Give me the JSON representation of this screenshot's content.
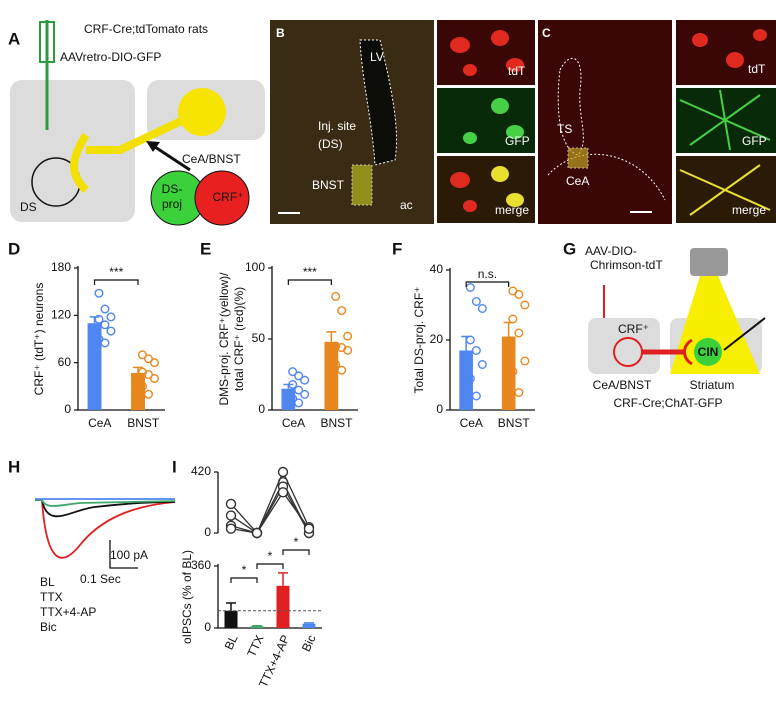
{
  "panel_letters": [
    "A",
    "B",
    "C",
    "D",
    "E",
    "F",
    "G",
    "H",
    "I"
  ],
  "panel_a": {
    "title": "CRF-Cre;tdTomato rats",
    "virus": "AAVretro-DIO-GFP",
    "region": "CeA/BNST",
    "ds_proj": [
      "DS-",
      "proj"
    ],
    "crf": "CRF⁺",
    "ds": "DS"
  },
  "panel_b": {
    "lv": "LV",
    "inj": [
      "Inj. site",
      "(DS)"
    ],
    "bnst": "BNST",
    "ac": "ac",
    "tdt": "tdT",
    "gfp": "GFP",
    "merge": "merge"
  },
  "panel_c": {
    "ts": "TS",
    "cea": "CeA",
    "tdt": "tdT",
    "gfp": "GFP",
    "merge": "merge"
  },
  "panel_g": {
    "virus": [
      "AAV-DIO-",
      "Chrimson-tdT"
    ],
    "crf": "CRF⁺",
    "cin": "CIN",
    "region": "CeA/BNST",
    "striatum": "Striatum",
    "rats": "CRF-Cre;ChAT-GFP"
  },
  "panel_h": {
    "scale_y": "100 pA",
    "scale_x": "0.1 Sec",
    "legend": [
      {
        "name": "BL",
        "color": "#111111"
      },
      {
        "name": "TTX",
        "color": "#3fa86b"
      },
      {
        "name": "TTX+4-AP",
        "color": "#e02020"
      },
      {
        "name": "Bic",
        "color": "#4f86f0"
      }
    ]
  },
  "chart_data": [
    {
      "type": "bar",
      "ylabel": [
        "CRF⁺ (tdT⁺) neurons"
      ],
      "categories": [
        "CeA",
        "BNST"
      ],
      "values": [
        110,
        47
      ],
      "errors": [
        8,
        7
      ],
      "colors": [
        "#4f86f0",
        "#e8871e"
      ],
      "points": [
        [
          148,
          128,
          118,
          115,
          108,
          100,
          90,
          85
        ],
        [
          70,
          65,
          60,
          48,
          45,
          40,
          30,
          20
        ]
      ],
      "significance": [
        "***"
      ],
      "ylim": [
        0,
        180
      ],
      "yticks": [
        0,
        60,
        120,
        180
      ]
    },
    {
      "type": "bar",
      "ylabel": [
        "DMS-proj. CRF⁺(yellow)/",
        "total CRF⁺ (red)(%)"
      ],
      "categories": [
        "CeA",
        "BNST"
      ],
      "values": [
        15,
        48
      ],
      "errors": [
        3,
        7
      ],
      "colors": [
        "#4f86f0",
        "#e8871e"
      ],
      "points": [
        [
          27,
          24,
          21,
          18,
          14,
          11,
          8,
          5
        ],
        [
          80,
          70,
          52,
          45,
          44,
          42,
          32,
          28
        ]
      ],
      "significance": [
        "***"
      ],
      "ylim": [
        0,
        100
      ],
      "yticks": [
        0,
        50,
        100
      ]
    },
    {
      "type": "bar",
      "ylabel": [
        "Total DS-proj. CRF⁺"
      ],
      "categories": [
        "CeA",
        "BNST"
      ],
      "values": [
        17,
        21
      ],
      "errors": [
        4,
        4
      ],
      "colors": [
        "#4f86f0",
        "#e8871e"
      ],
      "points": [
        [
          35,
          31,
          29,
          20,
          17,
          13,
          9,
          4
        ],
        [
          34,
          33,
          30,
          26,
          22,
          14,
          11,
          5
        ]
      ],
      "significance": [
        "n.s."
      ],
      "ylim": [
        0,
        40
      ],
      "yticks": [
        0,
        20,
        40
      ]
    },
    {
      "type": "line",
      "ylim": [
        0,
        420
      ],
      "yticks": [
        0,
        420
      ],
      "color": "#333333",
      "series": [
        {
          "values": [
            200,
            0,
            350,
            0
          ]
        },
        {
          "values": [
            120,
            0,
            420,
            40
          ]
        },
        {
          "values": [
            50,
            0,
            320,
            0
          ]
        },
        {
          "values": [
            30,
            0,
            280,
            30
          ]
        }
      ]
    },
    {
      "type": "bar",
      "ylabel": [
        "oIPSCs (% of BL)"
      ],
      "categories": [
        "BL",
        "TTX",
        "TTX+4-AP",
        "Bic"
      ],
      "values": [
        100,
        10,
        245,
        25
      ],
      "errors": [
        45,
        3,
        75,
        5
      ],
      "colors": [
        "#111111",
        "#3fa86b",
        "#e02020",
        "#4f86f0"
      ],
      "significance": [
        "*",
        "*",
        "*"
      ],
      "reference_line": 100,
      "ylim": [
        0,
        360
      ],
      "yticks": [
        0,
        360
      ]
    }
  ]
}
